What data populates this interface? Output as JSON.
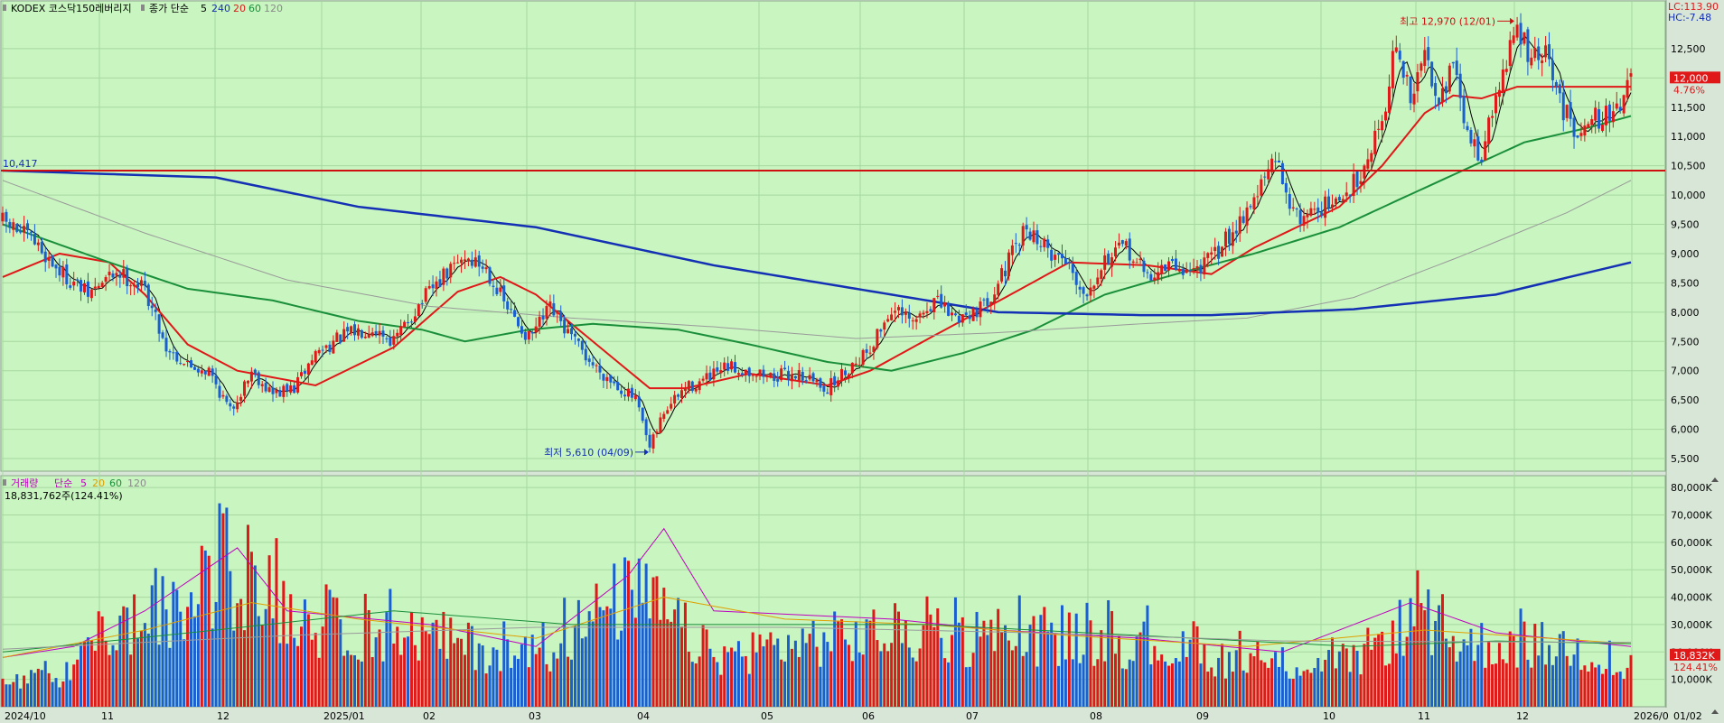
{
  "header": {
    "name": "KODEX 코스닥150레버리지",
    "ma_label": "종가 단순",
    "ma_periods": [
      "5",
      "240",
      "20",
      "60",
      "120"
    ],
    "ma_colors": [
      "#000000",
      "#1430b4",
      "#e01818",
      "#1a8f3a",
      "#9a9a9a"
    ]
  },
  "price_panel": {
    "lc_label": "LC:113.90",
    "hc_label": "HC:-7.48",
    "high_annotation": "최고 12,970 (12/01)",
    "low_annotation": "최저 5,610 (04/09)",
    "horizontal_line_label": "10,417",
    "current_price_label": "12,000",
    "current_change_label": "4.76%"
  },
  "volume_panel": {
    "title": "거래량",
    "ma_label": "단순",
    "ma_periods": [
      "5",
      "20",
      "60",
      "120"
    ],
    "ma_colors": [
      "#c000c0",
      "#e0a000",
      "#1a8f3a",
      "#9a9a9a"
    ],
    "value_label": "18,831,762주(124.41%)",
    "current_volume_label": "18,832K",
    "current_ratio_label": "124.41%"
  },
  "colors": {
    "background": "#c8f5c0",
    "up": "#e01818",
    "down": "#1a5fd0",
    "axis_bg": "#d8e6d8"
  },
  "chart_data": [
    {
      "type": "candlestick",
      "title": "KODEX 코스닥150레버리지",
      "x_ticks": [
        "2024/10",
        "11",
        "12",
        "2025/01",
        "02",
        "03",
        "04",
        "05",
        "06",
        "07",
        "08",
        "09",
        "10",
        "11",
        "12",
        "2026/0",
        "01/02"
      ],
      "y_ticks": [
        5500,
        6000,
        6500,
        7000,
        7500,
        8000,
        8500,
        9000,
        9500,
        10000,
        10500,
        11000,
        11500,
        12000,
        12500
      ],
      "ylim": [
        5300,
        13300
      ],
      "horizontal_line": 10417,
      "high": {
        "value": 12970,
        "date": "12/01"
      },
      "low": {
        "value": 5610,
        "date": "04/09"
      },
      "close_path": [
        [
          0,
          9550
        ],
        [
          8,
          9250
        ],
        [
          16,
          8700
        ],
        [
          24,
          8300
        ],
        [
          32,
          8700
        ],
        [
          40,
          8400
        ],
        [
          46,
          7400
        ],
        [
          52,
          7100
        ],
        [
          58,
          7000
        ],
        [
          64,
          6300
        ],
        [
          70,
          7000
        ],
        [
          76,
          6600
        ],
        [
          82,
          6700
        ],
        [
          88,
          7300
        ],
        [
          96,
          7600
        ],
        [
          104,
          7750
        ],
        [
          110,
          7500
        ],
        [
          118,
          8200
        ],
        [
          124,
          8600
        ],
        [
          130,
          8950
        ],
        [
          136,
          8750
        ],
        [
          142,
          8050
        ],
        [
          148,
          7550
        ],
        [
          154,
          8050
        ],
        [
          160,
          7550
        ],
        [
          166,
          7100
        ],
        [
          172,
          6800
        ],
        [
          178,
          6500
        ],
        [
          182,
          5650
        ],
        [
          186,
          6300
        ],
        [
          192,
          6700
        ],
        [
          198,
          6850
        ],
        [
          204,
          7050
        ],
        [
          210,
          7000
        ],
        [
          216,
          6900
        ],
        [
          224,
          6950
        ],
        [
          232,
          6700
        ],
        [
          238,
          7050
        ],
        [
          244,
          7400
        ],
        [
          250,
          8050
        ],
        [
          256,
          7800
        ],
        [
          262,
          8200
        ],
        [
          268,
          7900
        ],
        [
          276,
          8100
        ],
        [
          282,
          8750
        ],
        [
          288,
          9450
        ],
        [
          294,
          9050
        ],
        [
          300,
          8850
        ],
        [
          304,
          8300
        ],
        [
          310,
          8900
        ],
        [
          316,
          9100
        ],
        [
          322,
          8600
        ],
        [
          328,
          8800
        ],
        [
          334,
          8700
        ],
        [
          340,
          8900
        ],
        [
          346,
          9400
        ],
        [
          352,
          9950
        ],
        [
          358,
          10600
        ],
        [
          364,
          9600
        ],
        [
          370,
          9800
        ],
        [
          376,
          9850
        ],
        [
          382,
          10400
        ],
        [
          388,
          11300
        ],
        [
          392,
          12600
        ],
        [
          396,
          11600
        ],
        [
          400,
          12400
        ],
        [
          404,
          11700
        ],
        [
          408,
          12200
        ],
        [
          412,
          11000
        ],
        [
          416,
          10700
        ],
        [
          422,
          12100
        ],
        [
          426,
          12850
        ],
        [
          430,
          12300
        ],
        [
          434,
          12400
        ],
        [
          438,
          11600
        ],
        [
          442,
          11100
        ],
        [
          446,
          11350
        ],
        [
          450,
          11300
        ],
        [
          454,
          11500
        ],
        [
          458,
          12000
        ]
      ],
      "series": [
        {
          "name": "5",
          "values": []
        },
        {
          "name": "20",
          "values": [
            [
              0,
              8600
            ],
            [
              16,
              9000
            ],
            [
              30,
              8850
            ],
            [
              40,
              8300
            ],
            [
              52,
              7450
            ],
            [
              66,
              7000
            ],
            [
              88,
              6750
            ],
            [
              110,
              7400
            ],
            [
              128,
              8350
            ],
            [
              140,
              8600
            ],
            [
              150,
              8300
            ],
            [
              166,
              7500
            ],
            [
              182,
              6700
            ],
            [
              192,
              6700
            ],
            [
              210,
              6950
            ],
            [
              232,
              6750
            ],
            [
              244,
              7000
            ],
            [
              262,
              7600
            ],
            [
              282,
              8250
            ],
            [
              300,
              8850
            ],
            [
              322,
              8800
            ],
            [
              340,
              8650
            ],
            [
              352,
              9100
            ],
            [
              376,
              9800
            ],
            [
              388,
              10500
            ],
            [
              400,
              11400
            ],
            [
              408,
              11700
            ],
            [
              416,
              11650
            ],
            [
              426,
              11850
            ],
            [
              438,
              11850
            ],
            [
              458,
              11850
            ]
          ]
        },
        {
          "name": "60",
          "values": [
            [
              0,
              9500
            ],
            [
              30,
              8850
            ],
            [
              52,
              8400
            ],
            [
              76,
              8200
            ],
            [
              100,
              7850
            ],
            [
              118,
              7700
            ],
            [
              130,
              7500
            ],
            [
              148,
              7700
            ],
            [
              166,
              7800
            ],
            [
              190,
              7700
            ],
            [
              210,
              7450
            ],
            [
              232,
              7150
            ],
            [
              250,
              7000
            ],
            [
              270,
              7300
            ],
            [
              290,
              7700
            ],
            [
              310,
              8300
            ],
            [
              330,
              8650
            ],
            [
              352,
              9000
            ],
            [
              376,
              9450
            ],
            [
              392,
              9900
            ],
            [
              410,
              10400
            ],
            [
              428,
              10900
            ],
            [
              446,
              11150
            ],
            [
              458,
              11350
            ]
          ]
        },
        {
          "name": "120",
          "values": [
            [
              0,
              10250
            ],
            [
              40,
              9350
            ],
            [
              80,
              8550
            ],
            [
              120,
              8100
            ],
            [
              160,
              7900
            ],
            [
              200,
              7750
            ],
            [
              240,
              7550
            ],
            [
              280,
              7650
            ],
            [
              320,
              7800
            ],
            [
              350,
              7900
            ],
            [
              380,
              8250
            ],
            [
              410,
              8950
            ],
            [
              440,
              9700
            ],
            [
              458,
              10250
            ]
          ]
        },
        {
          "name": "240",
          "values": [
            [
              0,
              10417
            ],
            [
              60,
              10300
            ],
            [
              100,
              9800
            ],
            [
              150,
              9450
            ],
            [
              200,
              8800
            ],
            [
              240,
              8400
            ],
            [
              280,
              8000
            ],
            [
              320,
              7950
            ],
            [
              340,
              7950
            ],
            [
              380,
              8050
            ],
            [
              420,
              8300
            ],
            [
              458,
              8850
            ]
          ]
        }
      ]
    },
    {
      "type": "bar",
      "title": "거래량",
      "y_ticks": [
        "10,000K",
        "20,000K",
        "30,000K",
        "40,000K",
        "50,000K",
        "60,000K",
        "70,000K",
        "80,000K"
      ],
      "ylim": [
        0,
        84000
      ],
      "unit": "K",
      "last_value": 18832,
      "peaks": [
        [
          0,
          14000
        ],
        [
          20,
          20000
        ],
        [
          28,
          45000
        ],
        [
          40,
          52000
        ],
        [
          48,
          55000
        ],
        [
          64,
          80000
        ],
        [
          90,
          48000
        ],
        [
          122,
          42000
        ],
        [
          148,
          28000
        ],
        [
          176,
          68000
        ],
        [
          183,
          62000
        ],
        [
          200,
          30000
        ],
        [
          220,
          38000
        ],
        [
          250,
          45000
        ],
        [
          270,
          40000
        ],
        [
          300,
          42000
        ],
        [
          320,
          38000
        ],
        [
          340,
          30000
        ],
        [
          360,
          25000
        ],
        [
          380,
          28000
        ],
        [
          396,
          52000
        ],
        [
          410,
          38000
        ],
        [
          426,
          38000
        ],
        [
          444,
          35000
        ],
        [
          458,
          18832
        ]
      ],
      "series": [
        {
          "name": "5",
          "values": [
            [
              0,
              18000
            ],
            [
              20,
              22000
            ],
            [
              40,
              35000
            ],
            [
              66,
              58000
            ],
            [
              80,
              35000
            ],
            [
              120,
              30000
            ],
            [
              150,
              22000
            ],
            [
              176,
              48000
            ],
            [
              186,
              65000
            ],
            [
              200,
              35000
            ],
            [
              250,
              32000
            ],
            [
              280,
              28000
            ],
            [
              320,
              25000
            ],
            [
              360,
              20000
            ],
            [
              396,
              38000
            ],
            [
              420,
              27000
            ],
            [
              458,
              22000
            ]
          ]
        },
        {
          "name": "20",
          "values": [
            [
              0,
              18000
            ],
            [
              40,
              28000
            ],
            [
              70,
              38000
            ],
            [
              100,
              32000
            ],
            [
              150,
              25000
            ],
            [
              186,
              40000
            ],
            [
              220,
              32000
            ],
            [
              260,
              30000
            ],
            [
              300,
              26000
            ],
            [
              350,
              22000
            ],
            [
              400,
              28000
            ],
            [
              458,
              23000
            ]
          ]
        },
        {
          "name": "60",
          "values": [
            [
              0,
              20000
            ],
            [
              60,
              28000
            ],
            [
              110,
              35000
            ],
            [
              160,
              30000
            ],
            [
              210,
              30000
            ],
            [
              260,
              30000
            ],
            [
              320,
              26000
            ],
            [
              380,
              22000
            ],
            [
              420,
              24000
            ],
            [
              458,
              23000
            ]
          ]
        },
        {
          "name": "120",
          "values": [
            [
              0,
              21000
            ],
            [
              80,
              26000
            ],
            [
              150,
              29000
            ],
            [
              220,
              29000
            ],
            [
              290,
              27000
            ],
            [
              360,
              24000
            ],
            [
              458,
              23500
            ]
          ]
        }
      ]
    }
  ]
}
